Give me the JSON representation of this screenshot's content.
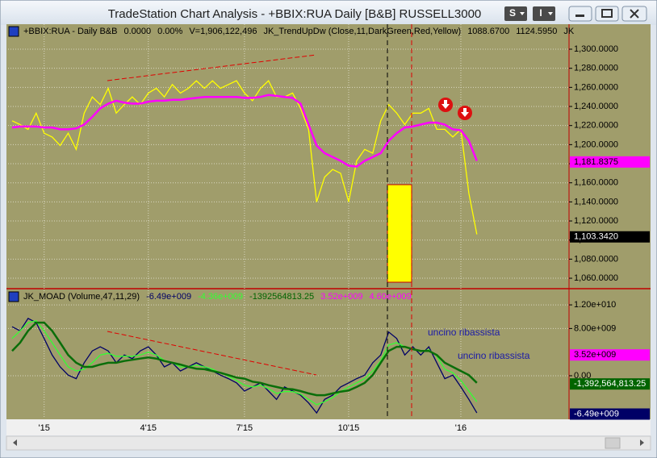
{
  "window": {
    "title": "TradeStation Chart Analysis - +BBIX:RUA Daily [B&B] RUSSELL3000",
    "buttons": [
      "S",
      "I"
    ]
  },
  "chart_data": [
    {
      "type": "line",
      "header": [
        {
          "text": "+BBIX:RUA - Daily  B&B",
          "color": "#000000"
        },
        {
          "text": "0.0000",
          "color": "#000000"
        },
        {
          "text": "0.00%",
          "color": "#000000"
        },
        {
          "text": "V=1,906,122,496",
          "color": "#000000"
        },
        {
          "text": "JK_TrendUpDw (Close,11,DarkGreen,Red,Yellow)",
          "color": "#000000"
        },
        {
          "text": "1088.6700",
          "color": "#000000"
        },
        {
          "text": "1124.5950",
          "color": "#000000"
        },
        {
          "text": "JK",
          "color": "#000000"
        }
      ],
      "categories": [
        null,
        null,
        null,
        null,
        "'15",
        null,
        null,
        null,
        null,
        null,
        null,
        null,
        null,
        null,
        null,
        null,
        null,
        "4'15",
        null,
        null,
        null,
        null,
        null,
        null,
        null,
        null,
        null,
        null,
        null,
        "7'15",
        null,
        null,
        null,
        null,
        null,
        null,
        null,
        null,
        null,
        null,
        null,
        null,
        "10'15",
        null,
        null,
        null,
        null,
        null,
        null,
        null,
        null,
        null,
        null,
        null,
        null,
        null,
        "'16",
        null,
        null,
        null,
        null,
        null,
        null,
        null,
        null,
        null,
        null,
        null,
        null,
        null
      ],
      "series": [
        {
          "color": "#ffff00",
          "values": [
            1225,
            1221,
            1216,
            1233,
            1212,
            1208,
            1199,
            1212,
            1195,
            1233,
            1250,
            1242,
            1259,
            1233,
            1242,
            1250,
            1242,
            1254,
            1259,
            1250,
            1263,
            1254,
            1259,
            1267,
            1259,
            1267,
            1259,
            1263,
            1267,
            1254,
            1246,
            1259,
            1267,
            1250,
            1250,
            1254,
            1238,
            1216,
            1140,
            1166,
            1174,
            1170,
            1140,
            1183,
            1195,
            1191,
            1225,
            1242,
            1233,
            1221,
            1233,
            1233,
            1238,
            1216,
            1216,
            1208,
            1216,
            1149,
            1106,
            null,
            null,
            null,
            null,
            null,
            null,
            null,
            null,
            null,
            null,
            null
          ]
        },
        {
          "color": "#ff00ff",
          "values": [
            1218,
            1219,
            1219,
            1219,
            1218,
            1218,
            1216,
            1216,
            1217,
            1221,
            1229,
            1238,
            1243,
            1246,
            1244,
            1243,
            1243,
            1245,
            1246,
            1246,
            1247,
            1247,
            1248,
            1249,
            1250,
            1250,
            1250,
            1250,
            1250,
            1249,
            1249,
            1250,
            1252,
            1251,
            1250,
            1249,
            1243,
            1221,
            1199,
            1191,
            1187,
            1183,
            1178,
            1177,
            1183,
            1187,
            1191,
            1204,
            1212,
            1218,
            1219,
            1221,
            1223,
            1223,
            1221,
            1216,
            1215,
            1204,
            1183,
            null,
            null,
            null,
            null,
            null,
            null,
            null,
            null,
            null,
            null,
            null
          ]
        }
      ],
      "ylim": [
        1049.9,
        1326.2
      ],
      "yticks": [
        {
          "value": 1060,
          "label": "1,060.0000"
        },
        {
          "value": 1080,
          "label": "1,080.0000"
        },
        {
          "value": 1100,
          "label": "1,100.0000"
        },
        {
          "value": 1120,
          "label": "1,120.0000"
        },
        {
          "value": 1140,
          "label": "1,140.0000"
        },
        {
          "value": 1160,
          "label": "1,160.0000"
        },
        {
          "value": 1180,
          "label": "1,180.0000"
        },
        {
          "value": 1200,
          "label": "1,200.0000"
        },
        {
          "value": 1220,
          "label": "1,220.0000"
        },
        {
          "value": 1240,
          "label": "1,240.0000"
        },
        {
          "value": 1260,
          "label": "1,260.0000"
        },
        {
          "value": 1280,
          "label": "1,280.0000"
        },
        {
          "value": 1300,
          "label": "1,300.0000"
        }
      ],
      "grid": true,
      "flags": [
        {
          "value": 1181.8375,
          "label": "1,181.8375",
          "color": "#ff00ff"
        },
        {
          "value": 1103.342,
          "label": "1,103.3420",
          "color": "#000000"
        }
      ]
    },
    {
      "type": "line",
      "header": [
        {
          "text": "JK_MOAD (Volume,47,11,29)",
          "color": "#000000"
        },
        {
          "text": "-6.49e+009",
          "color": "#000066"
        },
        {
          "text": "-4.36e+009",
          "color": "#33ff33"
        },
        {
          "text": "-1392564813.25",
          "color": "#006400"
        },
        {
          "text": "3.52e+009",
          "color": "#ff00ff"
        },
        {
          "text": "4.60e+009",
          "color": "#ff00ff"
        }
      ],
      "series": [
        {
          "color": "#000066",
          "values": [
            8300000000.0,
            7600000000.0,
            9700000000.0,
            9000000000.0,
            6300000000.0,
            3500000000.0,
            1500000000.0,
            100000000.0,
            -500000000.0,
            2200000000.0,
            4200000000.0,
            4900000000.0,
            4200000000.0,
            2200000000.0,
            3500000000.0,
            2900000000.0,
            4200000000.0,
            4900000000.0,
            3500000000.0,
            1500000000.0,
            2200000000.0,
            800000000.0,
            1500000000.0,
            2200000000.0,
            1500000000.0,
            800000000.0,
            100000000.0,
            -500000000.0,
            -1200000000.0,
            -2600000000.0,
            -1900000000.0,
            -1200000000.0,
            -2600000000.0,
            -4000000000.0,
            -1900000000.0,
            -2600000000.0,
            -3300000000.0,
            -4600000000.0,
            -6300000000.0,
            -4000000000.0,
            -3300000000.0,
            -1900000000.0,
            -1200000000.0,
            -500000000.0,
            100000000.0,
            2200000000.0,
            3500000000.0,
            7400000000.0,
            6300000000.0,
            3500000000.0,
            4900000000.0,
            3500000000.0,
            4900000000.0,
            2200000000.0,
            -500000000.0,
            100000000.0,
            -1900000000.0,
            -4000000000.0,
            -6300000000.0,
            null,
            null,
            null,
            null,
            null,
            null,
            null,
            null,
            null,
            null,
            null
          ]
        },
        {
          "color": "#33ff33",
          "values": [
            6300000000.0,
            7600000000.0,
            9000000000.0,
            9300000000.0,
            7600000000.0,
            5600000000.0,
            3500000000.0,
            1500000000.0,
            800000000.0,
            1100000000.0,
            2200000000.0,
            3500000000.0,
            3800000000.0,
            3300000000.0,
            3300000000.0,
            3300000000.0,
            3500000000.0,
            4000000000.0,
            3500000000.0,
            2600000000.0,
            2200000000.0,
            1500000000.0,
            1500000000.0,
            1800000000.0,
            1500000000.0,
            1100000000.0,
            500000000.0,
            -100000000.0,
            -800000000.0,
            -1600000000.0,
            -1900000000.0,
            -1600000000.0,
            -2200000000.0,
            -3000000000.0,
            -2700000000.0,
            -2700000000.0,
            -3100000000.0,
            -4000000000.0,
            -4900000000.0,
            -4400000000.0,
            -3700000000.0,
            -2700000000.0,
            -1900000000.0,
            -1200000000.0,
            -500000000.0,
            800000000.0,
            2500000000.0,
            5200000000.0,
            5600000000.0,
            4900000000.0,
            4600000000.0,
            4100000000.0,
            4400000000.0,
            3300000000.0,
            1100000000.0,
            500000000.0,
            -800000000.0,
            -2600000000.0,
            -4400000000.0,
            null,
            null,
            null,
            null,
            null,
            null,
            null,
            null,
            null,
            null,
            null
          ]
        },
        {
          "color": "#0a6e0a",
          "values": [
            4200000000.0,
            5600000000.0,
            7600000000.0,
            9000000000.0,
            9000000000.0,
            7600000000.0,
            5600000000.0,
            3500000000.0,
            2200000000.0,
            1500000000.0,
            1500000000.0,
            1900000000.0,
            2200000000.0,
            2200000000.0,
            2500000000.0,
            2700000000.0,
            2900000000.0,
            3100000000.0,
            2900000000.0,
            2500000000.0,
            2200000000.0,
            1900000000.0,
            1500000000.0,
            1200000000.0,
            1100000000.0,
            800000000.0,
            500000000.0,
            100000000.0,
            -300000000.0,
            -500000000.0,
            -1000000000.0,
            -1200000000.0,
            -1600000000.0,
            -1900000000.0,
            -2200000000.0,
            -2300000000.0,
            -2600000000.0,
            -3000000000.0,
            -3300000000.0,
            -3300000000.0,
            -3000000000.0,
            -2700000000.0,
            -2500000000.0,
            -1900000000.0,
            -1200000000.0,
            100000000.0,
            2200000000.0,
            4200000000.0,
            4900000000.0,
            4900000000.0,
            4500000000.0,
            4200000000.0,
            4200000000.0,
            3500000000.0,
            2200000000.0,
            1500000000.0,
            800000000.0,
            100000000.0,
            -1200000000.0,
            null,
            null,
            null,
            null,
            null,
            null,
            null,
            null,
            null,
            null,
            null
          ]
        }
      ],
      "ylim": [
        -7240000000.0,
        14470000000.0
      ],
      "yticks": [
        {
          "value": 12000000000.0,
          "label": "1.20e+010"
        },
        {
          "value": 8000000000.0,
          "label": "8.00e+009"
        },
        {
          "value": 0,
          "label": "0.00"
        }
      ],
      "grid": true,
      "annotations": [
        "uncino ribassista",
        "uncino ribassista"
      ],
      "flags": [
        {
          "value": 3520000000.0,
          "label": "3.52e+009",
          "color": "#ff00ff"
        },
        {
          "value": -1392564813.25,
          "label": "-1,392,564,813.25",
          "color": "#006400"
        },
        {
          "value": -6490000000.0,
          "label": "-6.49e+009",
          "color": "#000066"
        }
      ]
    }
  ]
}
